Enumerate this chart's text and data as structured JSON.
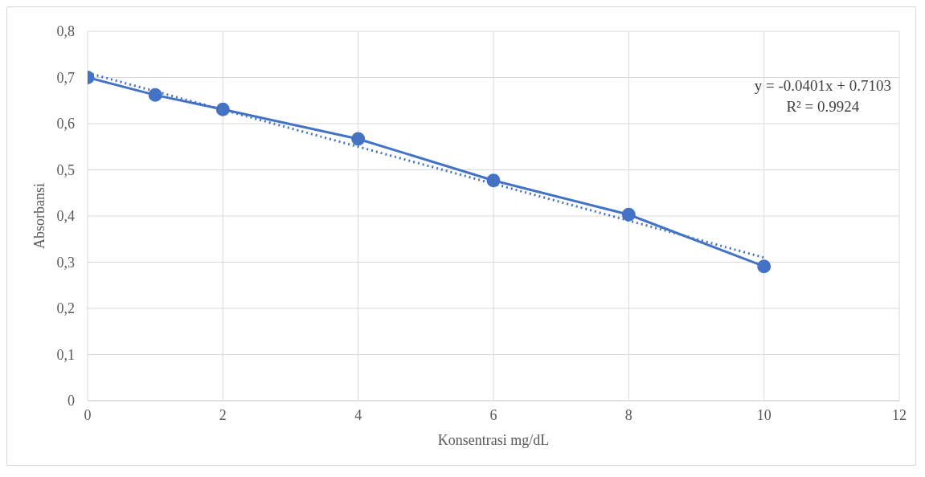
{
  "chart_data": {
    "type": "line",
    "xlabel": "Konsentrasi mg/dL",
    "ylabel": "Absorbansi",
    "xlim": [
      0,
      12
    ],
    "xticks": [
      0,
      2,
      4,
      6,
      8,
      10,
      12
    ],
    "ylim": [
      0,
      0.8
    ],
    "yticks": [
      0,
      {
        "value": 0.1,
        "label": "0,1"
      },
      {
        "value": 0.2,
        "label": "0,2"
      },
      {
        "value": 0.3,
        "label": "0,3"
      },
      {
        "value": 0.4,
        "label": "0,4"
      },
      {
        "value": 0.5,
        "label": "0,5"
      },
      {
        "value": 0.6,
        "label": "0,6"
      },
      {
        "value": 0.7,
        "label": "0,7"
      },
      {
        "value": 0.8,
        "label": "0,8"
      }
    ],
    "grid": true,
    "series": [
      {
        "color": "#4472c4",
        "x": [
          0,
          1,
          2,
          4,
          6,
          8,
          10
        ],
        "values": [
          0.7,
          0.662,
          0.631,
          0.567,
          0.477,
          0.403,
          0.291
        ],
        "marker": "circle",
        "line_style": "solid"
      },
      {
        "color": "#4472c4",
        "x": [
          0,
          10
        ],
        "values": [
          0.71,
          0.31
        ],
        "marker": "none",
        "line_style": "dotted"
      }
    ],
    "annotations": [
      "y = -0.0401x + 0.7103",
      "R² = 0.9924"
    ]
  }
}
